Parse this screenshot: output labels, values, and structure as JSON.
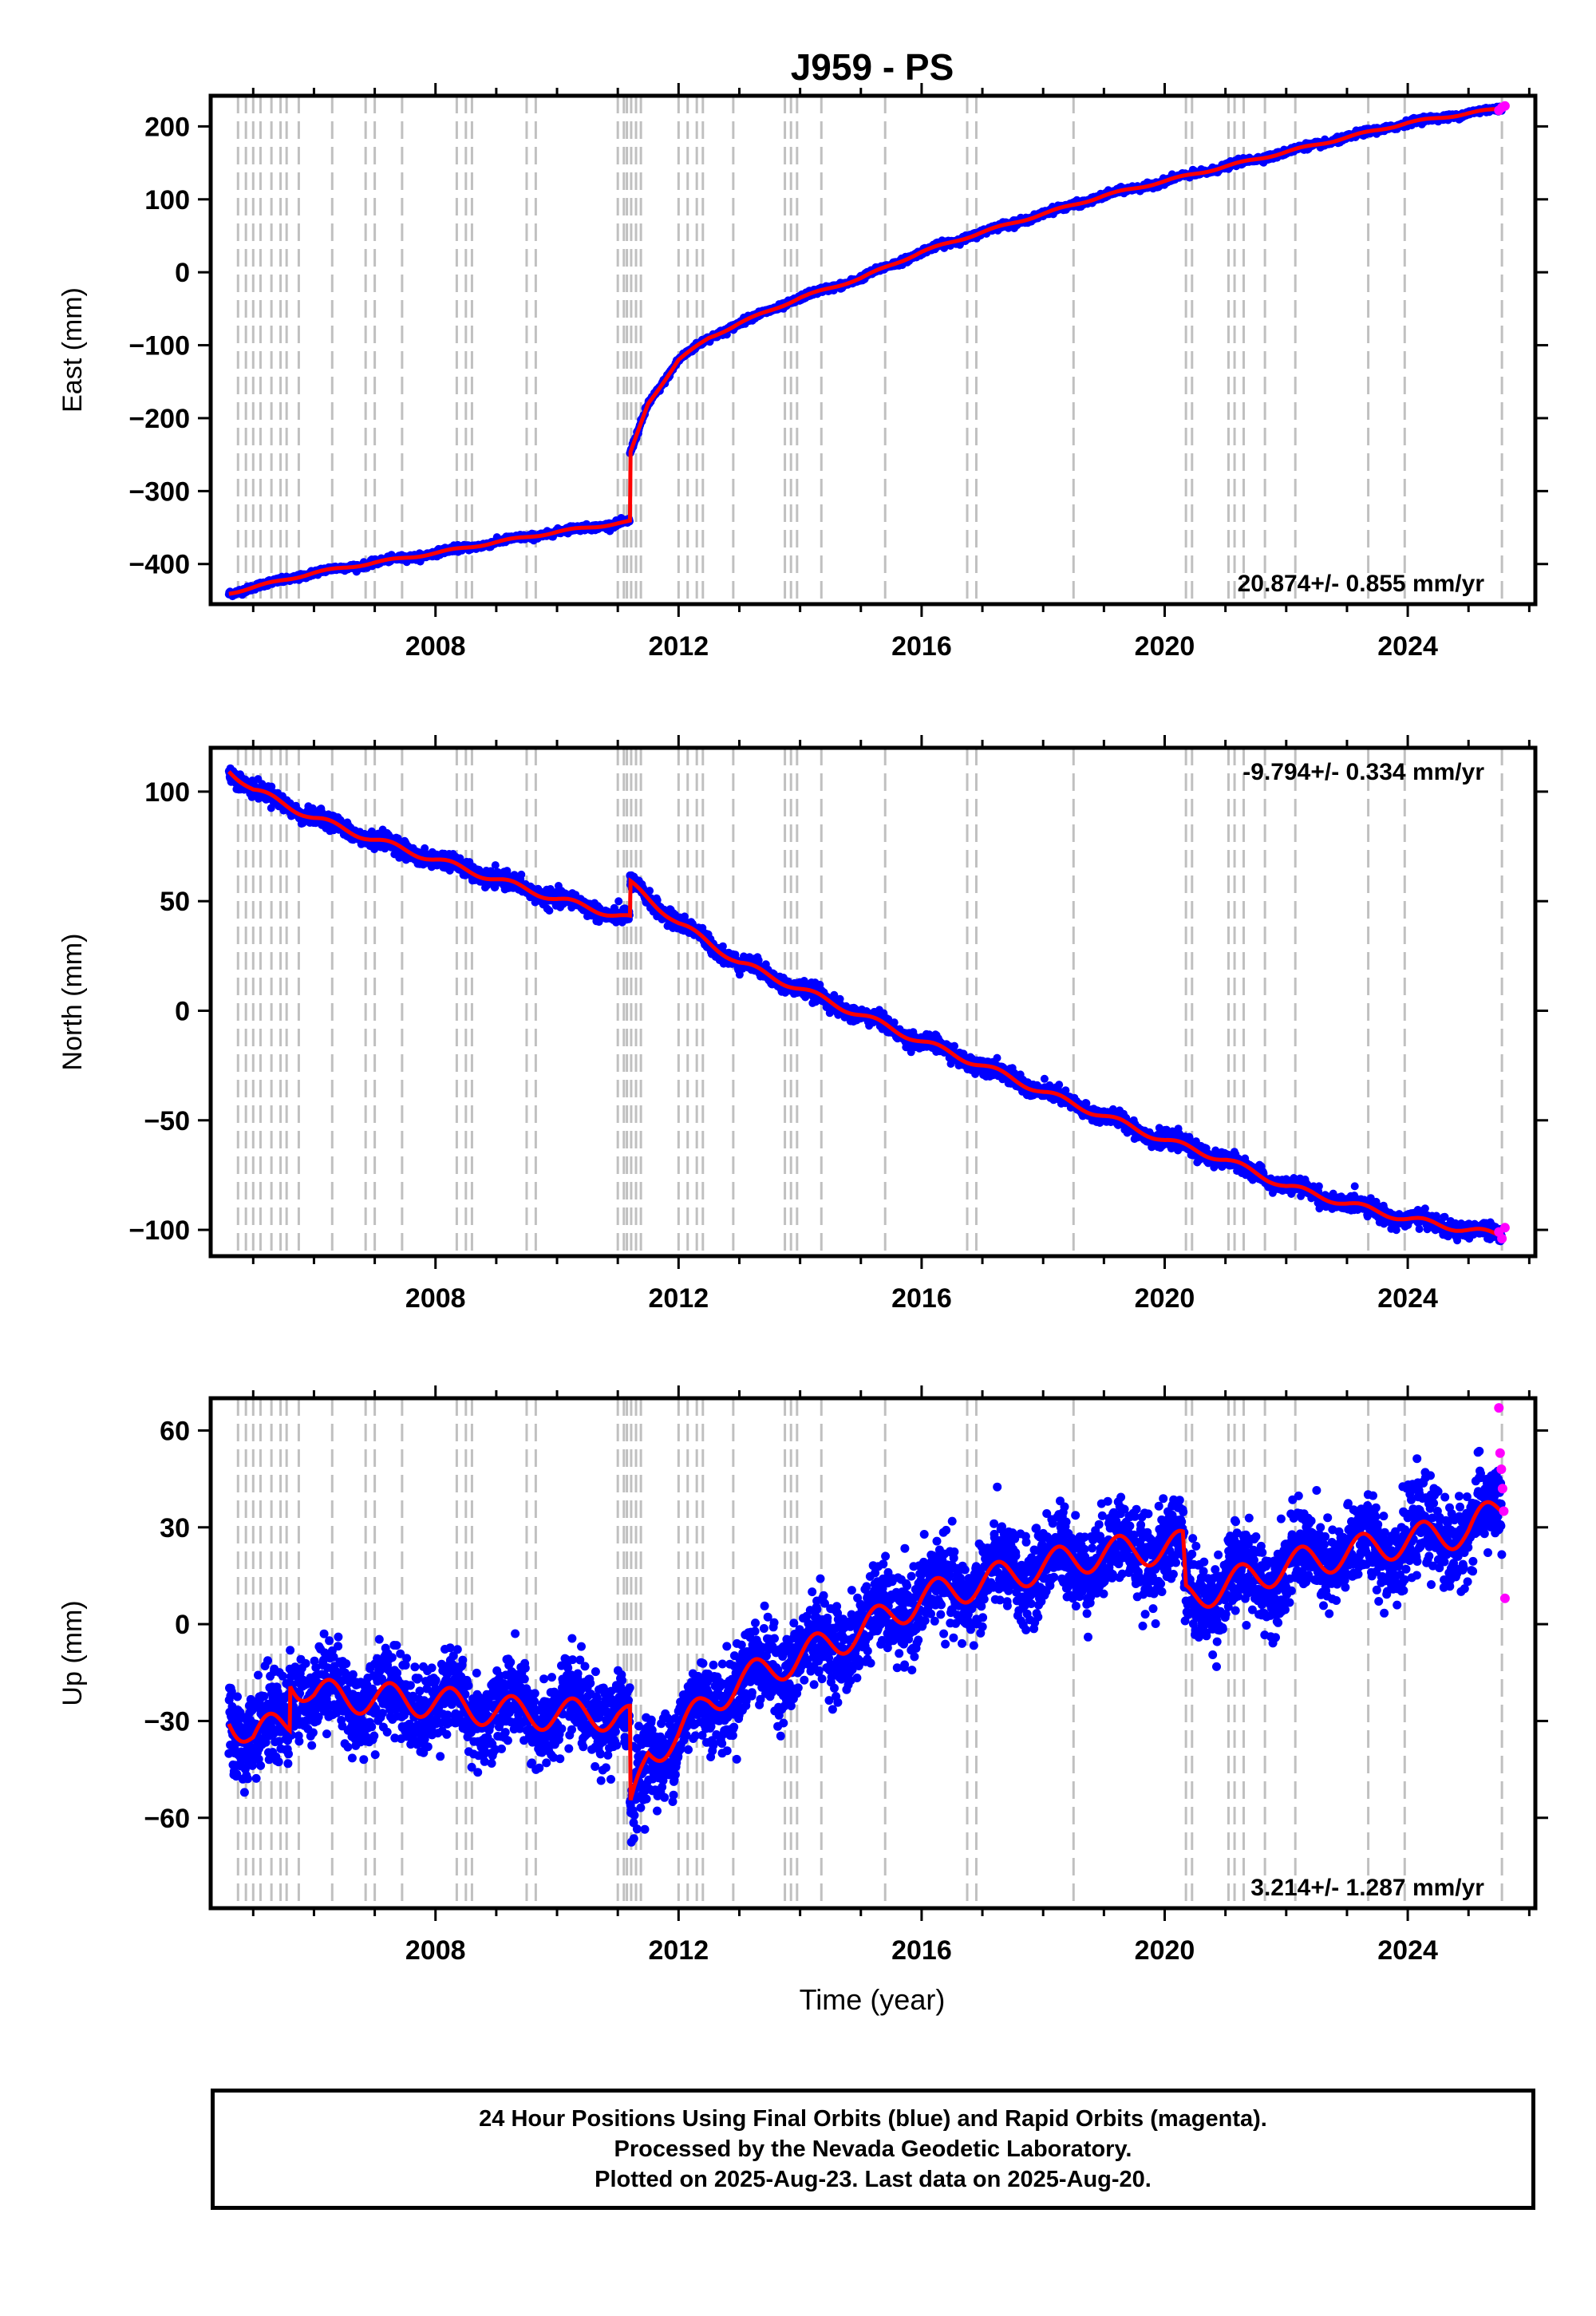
{
  "chart_data": {
    "title": "J959 - PS",
    "xlabel": "Time (year)",
    "x_range": [
      2004.3,
      2026.1
    ],
    "x_ticks": [
      2008,
      2012,
      2016,
      2020,
      2024
    ],
    "grid": false,
    "event_markers_years": [
      2004.75,
      2004.88,
      2005.0,
      2005.12,
      2005.3,
      2005.45,
      2005.55,
      2005.75,
      2006.3,
      2006.85,
      2007.0,
      2007.45,
      2008.35,
      2008.5,
      2008.6,
      2009.5,
      2009.65,
      2011.0,
      2011.1,
      2011.15,
      2011.22,
      2011.3,
      2011.38,
      2012.0,
      2012.15,
      2012.3,
      2012.4,
      2012.9,
      2013.75,
      2013.85,
      2013.95,
      2014.35,
      2015.4,
      2016.75,
      2016.9,
      2018.5,
      2020.35,
      2020.45,
      2021.05,
      2021.15,
      2021.3,
      2021.65,
      2022.15,
      2023.35,
      2023.95,
      2025.55
    ],
    "series_colors": {
      "final_orbits": "#0000ff",
      "rapid_orbits": "#ff00ff",
      "model_fit": "#ff0000",
      "event_lines": "#c0c0c0"
    },
    "panels": [
      {
        "name": "east",
        "type": "scatter",
        "ylabel": "East (mm)",
        "ylim": [
          -455,
          242
        ],
        "y_ticks": [
          200,
          100,
          0,
          -100,
          -200,
          -300,
          -400
        ],
        "rate_annotation": "20.874+/- 0.855 mm/yr",
        "annotation_position": "bottom-right",
        "model_fit": {
          "x": [
            2004.6,
            2005.0,
            2006.0,
            2007.0,
            2008.0,
            2009.0,
            2010.0,
            2010.5,
            2011.2,
            2011.2,
            2011.5,
            2012.0,
            2012.5,
            2013.0,
            2014.0,
            2015.0,
            2016.0,
            2017.0,
            2018.0,
            2019.0,
            2020.0,
            2021.0,
            2022.0,
            2023.0,
            2024.0,
            2025.0,
            2025.6
          ],
          "y": [
            -440,
            -432,
            -412,
            -398,
            -385,
            -370,
            -356,
            -350,
            -342,
            -250,
            -180,
            -120,
            -90,
            -70,
            -35,
            -8,
            28,
            55,
            80,
            105,
            125,
            145,
            165,
            185,
            205,
            218,
            225
          ]
        },
        "rapid_points": {
          "x": [
            2025.5,
            2025.55,
            2025.6
          ],
          "y": [
            222,
            226,
            228
          ]
        }
      },
      {
        "name": "north",
        "type": "scatter",
        "ylabel": "North (mm)",
        "ylim": [
          -112,
          120
        ],
        "y_ticks": [
          100,
          50,
          0,
          -50,
          -100
        ],
        "rate_annotation": "-9.794+/- 0.334 mm/yr",
        "annotation_position": "top-right",
        "model_fit": {
          "x": [
            2004.6,
            2005.0,
            2006.0,
            2007.0,
            2008.0,
            2009.0,
            2010.0,
            2011.2,
            2011.2,
            2012.0,
            2013.0,
            2014.0,
            2015.0,
            2016.0,
            2017.0,
            2018.0,
            2019.0,
            2020.0,
            2021.0,
            2022.0,
            2023.0,
            2024.0,
            2025.0,
            2025.6
          ],
          "y": [
            110,
            101,
            88,
            78,
            69,
            60,
            51,
            42,
            58,
            40,
            22,
            10,
            -2,
            -14,
            -25,
            -37,
            -48,
            -59,
            -68,
            -80,
            -88,
            -95,
            -100,
            -103
          ]
        },
        "rapid_points": {
          "x": [
            2025.5,
            2025.55,
            2025.6
          ],
          "y": [
            -101,
            -104,
            -99
          ]
        }
      },
      {
        "name": "up",
        "type": "scatter",
        "ylabel": "Up (mm)",
        "ylim": [
          -88,
          70
        ],
        "y_ticks": [
          60,
          30,
          0,
          -30,
          -60
        ],
        "rate_annotation": "3.214+/- 1.287 mm/yr",
        "annotation_position": "bottom-right",
        "model_fit": {
          "x": [
            2004.6,
            2005.0,
            2005.6,
            2005.6,
            2006.0,
            2007.0,
            2008.0,
            2009.0,
            2010.0,
            2011.0,
            2011.2,
            2011.2,
            2011.5,
            2012.0,
            2012.5,
            2013.0,
            2014.0,
            2015.0,
            2016.0,
            2017.0,
            2018.0,
            2019.0,
            2020.3,
            2020.35,
            2021.0,
            2022.0,
            2023.0,
            2024.0,
            2025.0,
            2025.6
          ],
          "y": [
            -28,
            -35,
            -30,
            -16,
            -22,
            -23,
            -24,
            -27,
            -28,
            -28,
            -30,
            -60,
            -40,
            -34,
            -24,
            -18,
            -10,
            -2,
            8,
            13,
            18,
            22,
            24,
            8,
            12,
            18,
            22,
            26,
            29,
            37
          ]
        },
        "rapid_points": {
          "x": [
            2025.5,
            2025.52,
            2025.54,
            2025.56,
            2025.58,
            2025.6
          ],
          "y": [
            67,
            53,
            48,
            42,
            35,
            8
          ]
        }
      }
    ]
  },
  "footer": {
    "line1": "24 Hour Positions Using Final Orbits (blue) and Rapid Orbits (magenta).",
    "line2": "Processed by the Nevada Geodetic Laboratory.",
    "line3": "Plotted on 2025-Aug-23. Last data on 2025-Aug-20."
  }
}
